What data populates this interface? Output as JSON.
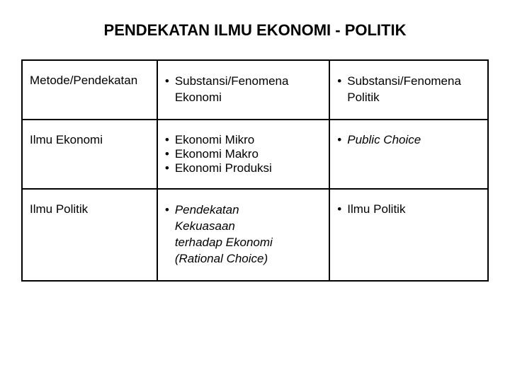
{
  "title": "PENDEKATAN ILMU EKONOMI - POLITIK",
  "r1c1": "Metode/Pendekatan",
  "r1c2_line1": "Substansi/Fenomena",
  "r1c2_line2": "Ekonomi",
  "r1c3_line1": "Substansi/Fenomena",
  "r1c3_line2": "Politik",
  "r2c1": "Ilmu Ekonomi",
  "r2c2_b1": "Ekonomi Mikro",
  "r2c2_b2": "Ekonomi Makro",
  "r2c2_b3": "Ekonomi Produksi",
  "r2c3": "Public Choice",
  "r3c1": "Ilmu Politik",
  "r3c2_line1": "Pendekatan",
  "r3c2_line2": "Kekuasaan",
  "r3c2_line3": "terhadap Ekonomi",
  "r3c2_line4": "(Rational Choice)",
  "r3c3": "Ilmu Politik",
  "bullet": "•"
}
